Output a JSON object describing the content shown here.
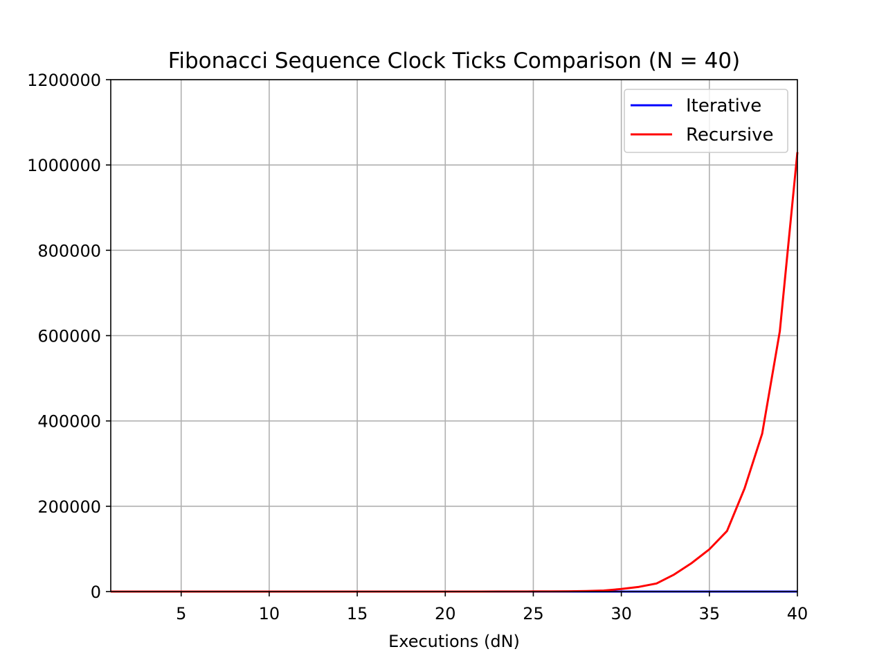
{
  "chart_data": {
    "type": "line",
    "title": "Fibonacci Sequence Clock Ticks Comparison (N = 40)",
    "xlabel": "Executions (dN)",
    "ylabel": "",
    "xlim": [
      1,
      40
    ],
    "ylim": [
      0,
      1200000
    ],
    "x_ticks": [
      5,
      10,
      15,
      20,
      25,
      30,
      35,
      40
    ],
    "y_ticks": [
      0,
      200000,
      400000,
      600000,
      800000,
      1000000,
      1200000
    ],
    "grid": true,
    "legend": "top-right",
    "x": [
      1,
      2,
      3,
      4,
      5,
      6,
      7,
      8,
      9,
      10,
      11,
      12,
      13,
      14,
      15,
      16,
      17,
      18,
      19,
      20,
      21,
      22,
      23,
      24,
      25,
      26,
      27,
      28,
      29,
      30,
      31,
      32,
      33,
      34,
      35,
      36,
      37,
      38,
      39,
      40
    ],
    "series": [
      {
        "name": "Iterative",
        "color": "#0000ff",
        "values": [
          1,
          1,
          1,
          1,
          1,
          1,
          1,
          1,
          1,
          1,
          1,
          1,
          1,
          1,
          1,
          1,
          1,
          1,
          1,
          1,
          1,
          1,
          1,
          1,
          1,
          1,
          1,
          1,
          1,
          1,
          1,
          1,
          1,
          1,
          1,
          1,
          1,
          1,
          1,
          1
        ]
      },
      {
        "name": "Recursive",
        "color": "#ff0000",
        "values": [
          0,
          0,
          0,
          0,
          0,
          0,
          0,
          0,
          0,
          0,
          0,
          0,
          0,
          0,
          0,
          0,
          5,
          8,
          14,
          22,
          36,
          58,
          94,
          153,
          248,
          401,
          700,
          1300,
          2500,
          6000,
          11000,
          19000,
          40000,
          67000,
          99000,
          142000,
          242000,
          370000,
          610000,
          1030000
        ]
      }
    ]
  }
}
